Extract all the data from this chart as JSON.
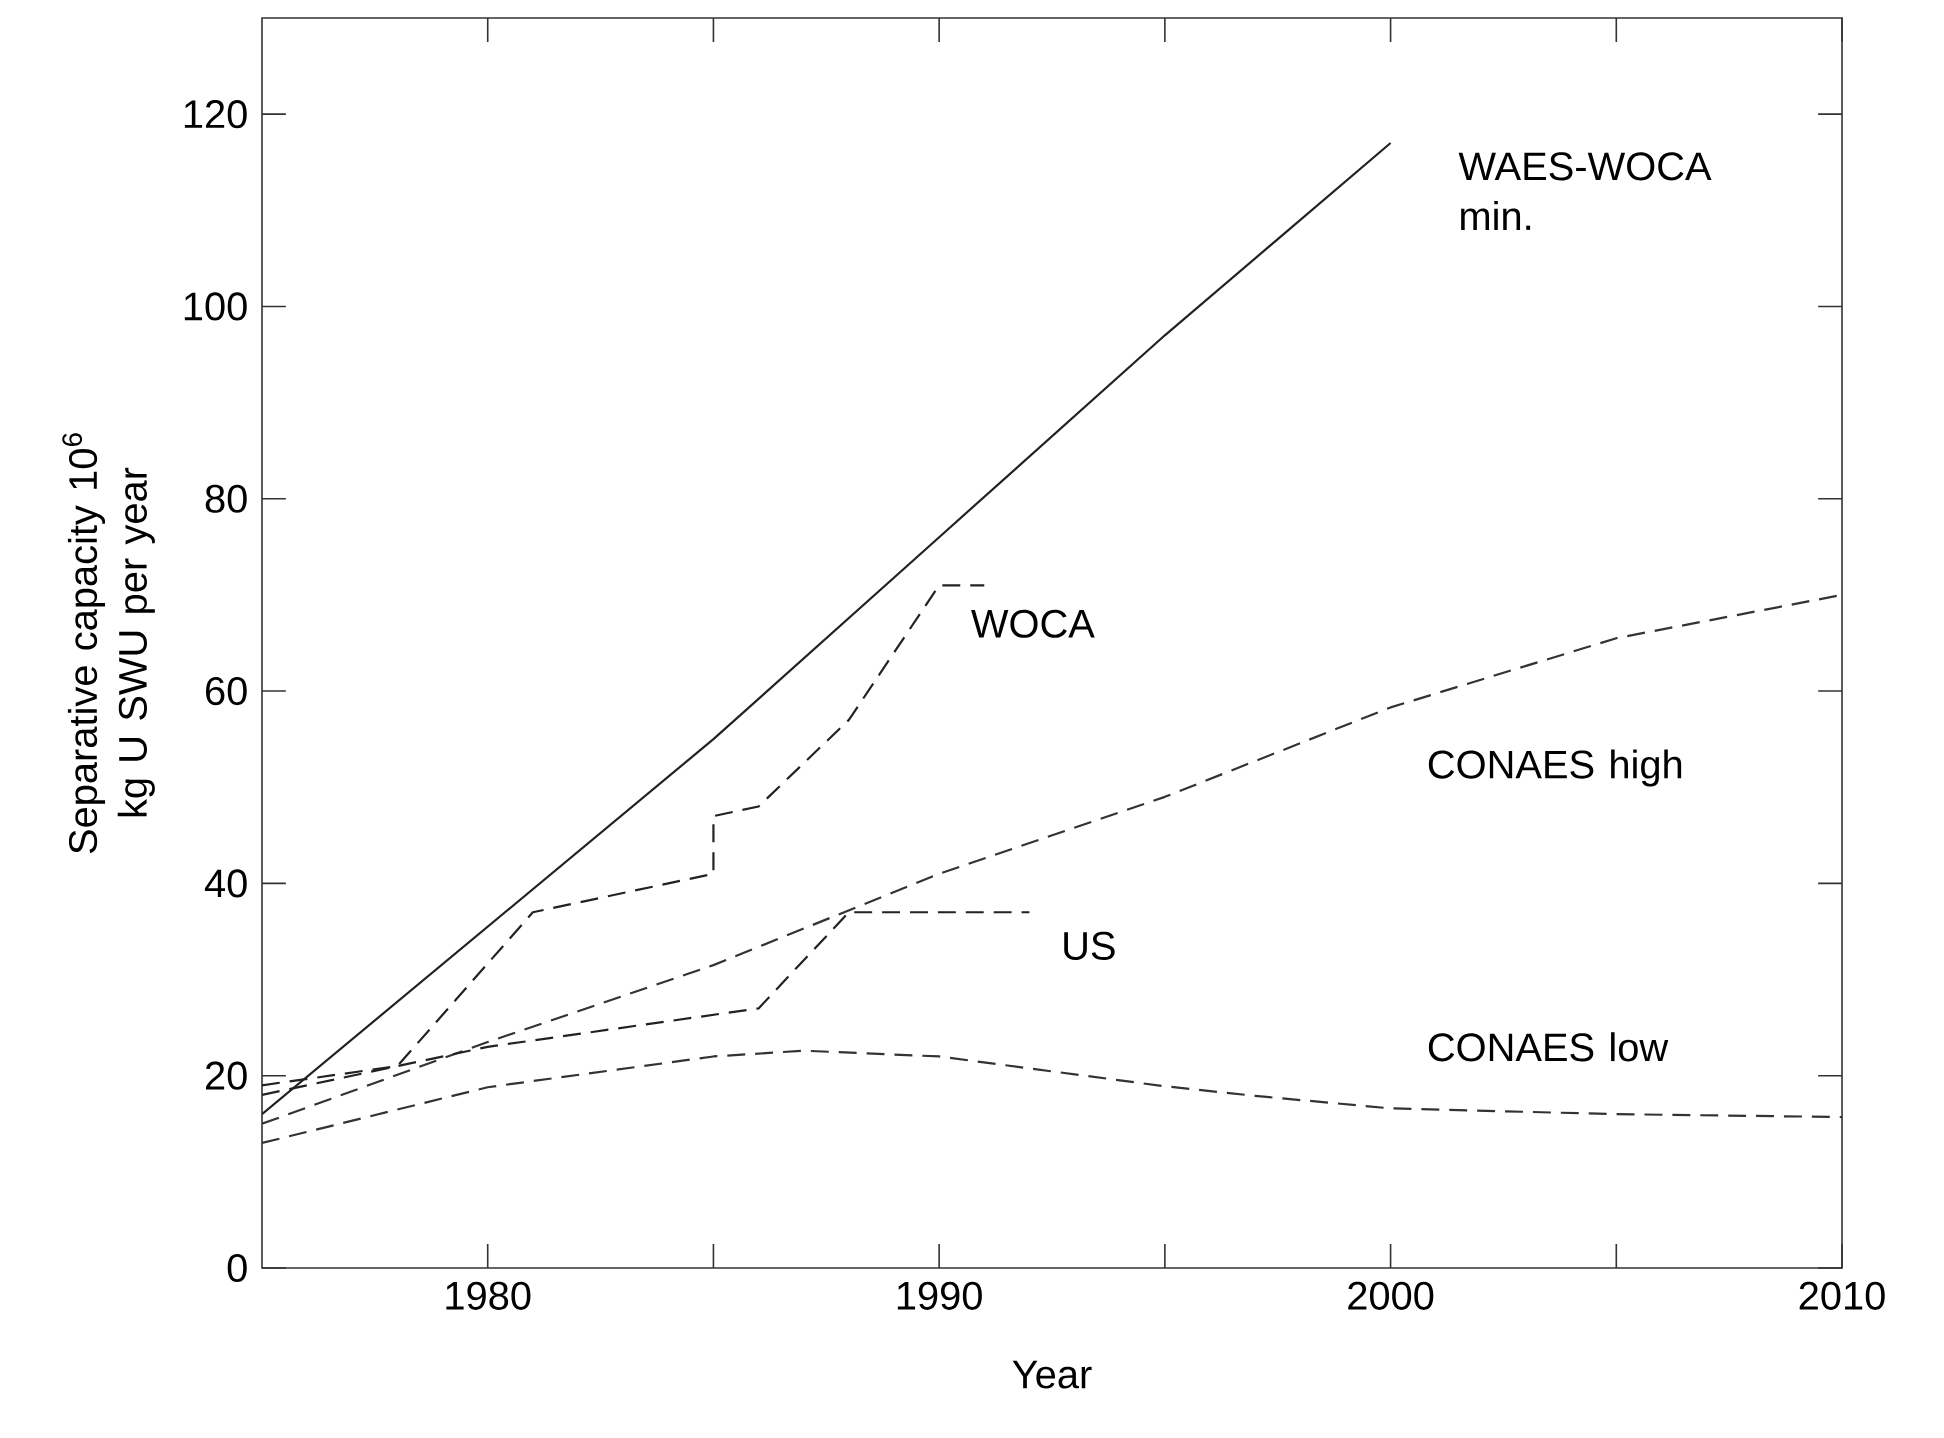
{
  "chart_data": {
    "type": "line",
    "xlabel": "Year",
    "ylabel": "Separative capacity 10$^{6}$ kg U SWU per year",
    "xlim": [
      1975,
      2010
    ],
    "ylim": [
      0,
      130
    ],
    "xticks": [
      1980,
      {
        "value": 1985,
        "label": null
      },
      1990,
      {
        "value": 1995,
        "label": null
      },
      2000,
      {
        "value": 2005,
        "label": null
      },
      2010
    ],
    "yticks": [
      0,
      20,
      40,
      60,
      80,
      100,
      120
    ],
    "grid": false,
    "legend": false,
    "series": [
      {
        "name": "WAES-WOCA min.",
        "color": "#222222",
        "line_style": "solid",
        "x": [
          1975,
          1980,
          1985,
          1990,
          1995,
          2000
        ],
        "values": [
          16,
          35.5,
          55,
          76,
          97,
          117
        ]
      },
      {
        "name": "WOCA",
        "color": "#222222",
        "line_style": "dashed",
        "x": [
          1975,
          1978,
          1981,
          1985,
          1985,
          1986,
          1988,
          1990,
          1991
        ],
        "values": [
          19,
          21,
          37,
          41,
          47,
          48,
          57,
          71,
          71
        ]
      },
      {
        "name": "CONAES high",
        "color": "#333333",
        "line_style": "dashed",
        "x": [
          1975,
          1980,
          1985,
          1990,
          1995,
          2000,
          2005,
          2010
        ],
        "values": [
          15,
          23.5,
          31.5,
          41,
          49,
          58.3,
          65.5,
          70
        ]
      },
      {
        "name": "US",
        "color": "#222222",
        "line_style": "dashed",
        "x": [
          1975,
          1980,
          1986,
          1988,
          1992
        ],
        "values": [
          18,
          23,
          27,
          37,
          37
        ]
      },
      {
        "name": "CONAES low",
        "color": "#333333",
        "line_style": "dashed",
        "x": [
          1975,
          1980,
          1985,
          1987,
          1990,
          1995,
          1997,
          2000,
          2005,
          2010
        ],
        "values": [
          13,
          18.8,
          22,
          22.6,
          22,
          18.9,
          17.9,
          16.6,
          16,
          15.7
        ]
      }
    ]
  }
}
